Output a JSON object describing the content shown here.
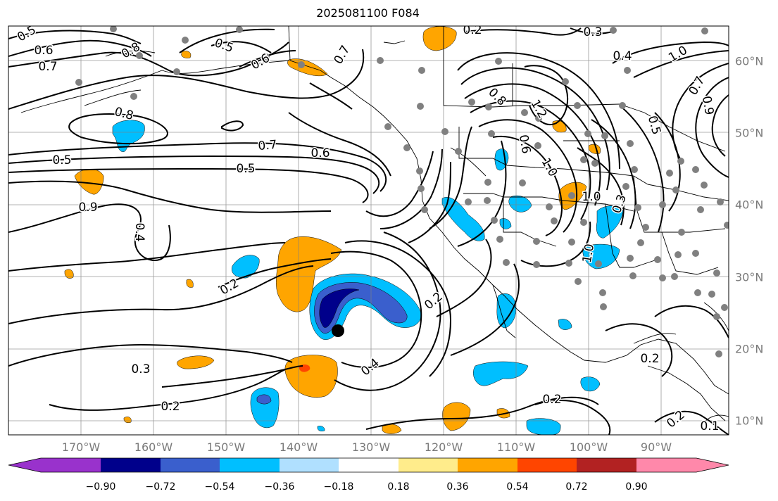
{
  "title": "2025081100 F084",
  "lon_ticks": [
    "170°W",
    "160°W",
    "150°W",
    "140°W",
    "130°W",
    "120°W",
    "110°W",
    "100°W",
    "90°W"
  ],
  "lat_ticks": [
    "60°N",
    "50°N",
    "40°N",
    "30°N",
    "20°N",
    "10°N"
  ],
  "contour_labels": [
    "0.5",
    "0.6",
    "0.7",
    "0.8",
    "0.5",
    "0.6",
    "0.7",
    "0.2",
    "0.3",
    "0.4",
    "1.0",
    "0.8",
    "0.7",
    "0.6",
    "0.5",
    "0.5",
    "0.9",
    "0.4",
    "0.2",
    "0.3",
    "0.2",
    "0.2",
    "0.4",
    "0.8",
    "1.2",
    "1.0",
    "0.3",
    "0.2",
    "0.6",
    "1.0",
    "0.5",
    "0.9",
    "0.7",
    "1.0",
    "0.2",
    "0.2",
    "0.1"
  ],
  "colorbar": {
    "labels": [
      "−0.90",
      "−0.72",
      "−0.54",
      "−0.36",
      "−0.18",
      "0.18",
      "0.36",
      "0.54",
      "0.72",
      "0.90"
    ],
    "colors": [
      "#9932cc",
      "#00008b",
      "#3a5fcd",
      "#00bfff",
      "#b0e0ff",
      "#ffffff",
      "#ffec8b",
      "#ffa500",
      "#ff4500",
      "#b22222",
      "#ff88aa"
    ]
  },
  "colors": {
    "frame": "#000000",
    "grid": "#808080",
    "station_dot": "#808080",
    "storm_marker": "#000000"
  }
}
